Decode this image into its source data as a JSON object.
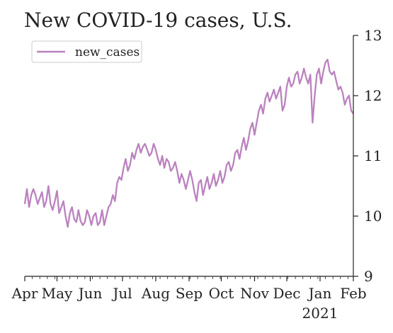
{
  "chart_data": {
    "type": "line",
    "title": "New COVID-19 cases, U.S.",
    "xlabel": "",
    "ylabel": "",
    "y_axis_side": "right",
    "ylim": [
      9,
      13
    ],
    "yticks": [
      9,
      10,
      11,
      12,
      13
    ],
    "xlim": [
      "2020-04-01",
      "2021-02-01"
    ],
    "xticks": [
      {
        "date": "2020-04-01",
        "label": "Apr"
      },
      {
        "date": "2020-05-01",
        "label": "May"
      },
      {
        "date": "2020-06-01",
        "label": "Jun"
      },
      {
        "date": "2020-07-01",
        "label": "Jul"
      },
      {
        "date": "2020-08-01",
        "label": "Aug"
      },
      {
        "date": "2020-09-01",
        "label": "Sep"
      },
      {
        "date": "2020-10-01",
        "label": "Oct"
      },
      {
        "date": "2020-11-01",
        "label": "Nov"
      },
      {
        "date": "2020-12-01",
        "label": "Dec"
      },
      {
        "date": "2021-01-01",
        "label": "Jan"
      },
      {
        "date": "2021-02-01",
        "label": "Feb"
      }
    ],
    "year_label": "2021",
    "legend": {
      "position": "top-left"
    },
    "series": [
      {
        "name": "new_cases",
        "color": "#bb82bf",
        "points": [
          [
            "2020-04-01",
            10.2
          ],
          [
            "2020-04-03",
            10.45
          ],
          [
            "2020-04-05",
            10.15
          ],
          [
            "2020-04-07",
            10.35
          ],
          [
            "2020-04-09",
            10.45
          ],
          [
            "2020-04-11",
            10.35
          ],
          [
            "2020-04-13",
            10.2
          ],
          [
            "2020-04-15",
            10.3
          ],
          [
            "2020-04-17",
            10.4
          ],
          [
            "2020-04-19",
            10.15
          ],
          [
            "2020-04-21",
            10.25
          ],
          [
            "2020-04-23",
            10.5
          ],
          [
            "2020-04-25",
            10.2
          ],
          [
            "2020-04-27",
            10.1
          ],
          [
            "2020-04-29",
            10.25
          ],
          [
            "2020-05-01",
            10.42
          ],
          [
            "2020-05-03",
            10.05
          ],
          [
            "2020-05-05",
            10.15
          ],
          [
            "2020-05-07",
            10.25
          ],
          [
            "2020-05-09",
            10.0
          ],
          [
            "2020-05-11",
            9.82
          ],
          [
            "2020-05-13",
            10.05
          ],
          [
            "2020-05-15",
            10.15
          ],
          [
            "2020-05-17",
            9.95
          ],
          [
            "2020-05-19",
            9.9
          ],
          [
            "2020-05-21",
            10.1
          ],
          [
            "2020-05-23",
            9.92
          ],
          [
            "2020-05-25",
            9.85
          ],
          [
            "2020-05-27",
            9.9
          ],
          [
            "2020-05-29",
            10.1
          ],
          [
            "2020-05-31",
            10.0
          ],
          [
            "2020-06-02",
            9.85
          ],
          [
            "2020-06-04",
            10.0
          ],
          [
            "2020-06-06",
            10.05
          ],
          [
            "2020-06-08",
            9.85
          ],
          [
            "2020-06-10",
            9.9
          ],
          [
            "2020-06-12",
            10.1
          ],
          [
            "2020-06-14",
            9.85
          ],
          [
            "2020-06-16",
            10.0
          ],
          [
            "2020-06-18",
            10.15
          ],
          [
            "2020-06-20",
            10.2
          ],
          [
            "2020-06-22",
            10.35
          ],
          [
            "2020-06-24",
            10.25
          ],
          [
            "2020-06-26",
            10.55
          ],
          [
            "2020-06-28",
            10.65
          ],
          [
            "2020-06-30",
            10.6
          ],
          [
            "2020-07-02",
            10.8
          ],
          [
            "2020-07-04",
            10.95
          ],
          [
            "2020-07-06",
            10.75
          ],
          [
            "2020-07-08",
            10.85
          ],
          [
            "2020-07-10",
            11.05
          ],
          [
            "2020-07-12",
            10.95
          ],
          [
            "2020-07-14",
            11.1
          ],
          [
            "2020-07-16",
            11.2
          ],
          [
            "2020-07-18",
            11.05
          ],
          [
            "2020-07-20",
            11.15
          ],
          [
            "2020-07-22",
            11.2
          ],
          [
            "2020-07-24",
            11.1
          ],
          [
            "2020-07-26",
            11.0
          ],
          [
            "2020-07-28",
            11.05
          ],
          [
            "2020-07-30",
            11.2
          ],
          [
            "2020-08-01",
            11.1
          ],
          [
            "2020-08-03",
            10.95
          ],
          [
            "2020-08-05",
            10.85
          ],
          [
            "2020-08-07",
            11.0
          ],
          [
            "2020-08-09",
            10.8
          ],
          [
            "2020-08-11",
            10.95
          ],
          [
            "2020-08-13",
            10.9
          ],
          [
            "2020-08-15",
            10.75
          ],
          [
            "2020-08-17",
            10.8
          ],
          [
            "2020-08-19",
            10.9
          ],
          [
            "2020-08-21",
            10.75
          ],
          [
            "2020-08-23",
            10.55
          ],
          [
            "2020-08-25",
            10.7
          ],
          [
            "2020-08-27",
            10.6
          ],
          [
            "2020-08-29",
            10.45
          ],
          [
            "2020-08-31",
            10.6
          ],
          [
            "2020-09-02",
            10.75
          ],
          [
            "2020-09-04",
            10.6
          ],
          [
            "2020-09-06",
            10.4
          ],
          [
            "2020-09-08",
            10.25
          ],
          [
            "2020-09-10",
            10.55
          ],
          [
            "2020-09-12",
            10.6
          ],
          [
            "2020-09-14",
            10.35
          ],
          [
            "2020-09-16",
            10.5
          ],
          [
            "2020-09-18",
            10.65
          ],
          [
            "2020-09-20",
            10.45
          ],
          [
            "2020-09-22",
            10.55
          ],
          [
            "2020-09-24",
            10.7
          ],
          [
            "2020-09-26",
            10.5
          ],
          [
            "2020-09-28",
            10.6
          ],
          [
            "2020-09-30",
            10.75
          ],
          [
            "2020-10-02",
            10.55
          ],
          [
            "2020-10-04",
            10.65
          ],
          [
            "2020-10-06",
            10.85
          ],
          [
            "2020-10-08",
            10.9
          ],
          [
            "2020-10-10",
            10.75
          ],
          [
            "2020-10-12",
            10.85
          ],
          [
            "2020-10-14",
            11.05
          ],
          [
            "2020-10-16",
            11.1
          ],
          [
            "2020-10-18",
            10.95
          ],
          [
            "2020-10-20",
            11.15
          ],
          [
            "2020-10-22",
            11.3
          ],
          [
            "2020-10-24",
            11.1
          ],
          [
            "2020-10-26",
            11.25
          ],
          [
            "2020-10-28",
            11.45
          ],
          [
            "2020-10-30",
            11.55
          ],
          [
            "2020-11-01",
            11.35
          ],
          [
            "2020-11-03",
            11.55
          ],
          [
            "2020-11-05",
            11.75
          ],
          [
            "2020-11-07",
            11.85
          ],
          [
            "2020-11-09",
            11.7
          ],
          [
            "2020-11-11",
            11.95
          ],
          [
            "2020-11-13",
            12.05
          ],
          [
            "2020-11-15",
            11.9
          ],
          [
            "2020-11-17",
            12.0
          ],
          [
            "2020-11-19",
            12.1
          ],
          [
            "2020-11-21",
            11.95
          ],
          [
            "2020-11-23",
            12.05
          ],
          [
            "2020-11-25",
            12.15
          ],
          [
            "2020-11-27",
            11.75
          ],
          [
            "2020-11-29",
            11.85
          ],
          [
            "2020-12-01",
            12.15
          ],
          [
            "2020-12-03",
            12.3
          ],
          [
            "2020-12-05",
            12.15
          ],
          [
            "2020-12-07",
            12.2
          ],
          [
            "2020-12-09",
            12.35
          ],
          [
            "2020-12-11",
            12.4
          ],
          [
            "2020-12-13",
            12.2
          ],
          [
            "2020-12-15",
            12.3
          ],
          [
            "2020-12-17",
            12.45
          ],
          [
            "2020-12-19",
            12.3
          ],
          [
            "2020-12-21",
            12.2
          ],
          [
            "2020-12-23",
            12.35
          ],
          [
            "2020-12-25",
            11.55
          ],
          [
            "2020-12-27",
            12.0
          ],
          [
            "2020-12-29",
            12.35
          ],
          [
            "2020-12-31",
            12.45
          ],
          [
            "2021-01-02",
            12.2
          ],
          [
            "2021-01-04",
            12.4
          ],
          [
            "2021-01-06",
            12.55
          ],
          [
            "2021-01-08",
            12.6
          ],
          [
            "2021-01-10",
            12.4
          ],
          [
            "2021-01-12",
            12.35
          ],
          [
            "2021-01-14",
            12.4
          ],
          [
            "2021-01-16",
            12.25
          ],
          [
            "2021-01-18",
            12.1
          ],
          [
            "2021-01-20",
            12.15
          ],
          [
            "2021-01-22",
            12.05
          ],
          [
            "2021-01-24",
            11.85
          ],
          [
            "2021-01-26",
            11.95
          ],
          [
            "2021-01-28",
            12.0
          ],
          [
            "2021-01-30",
            11.75
          ],
          [
            "2021-02-01",
            11.7
          ]
        ]
      }
    ]
  }
}
